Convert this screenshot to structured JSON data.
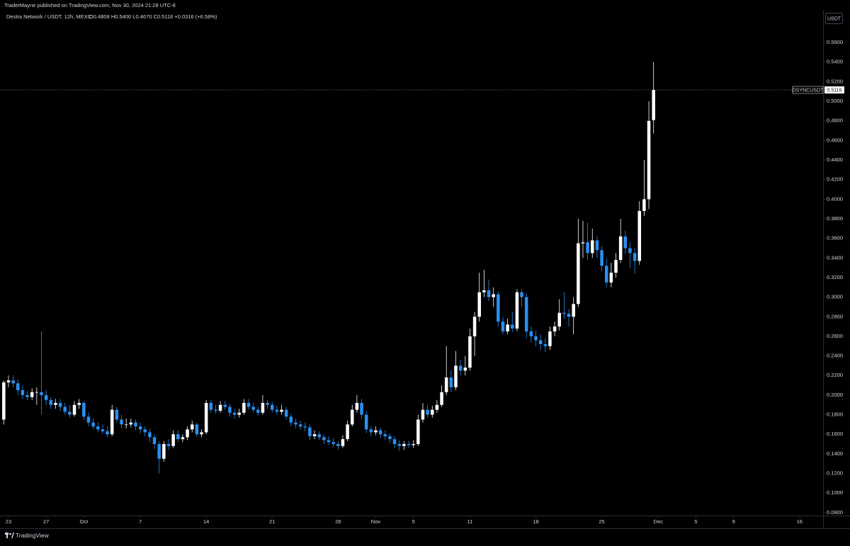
{
  "header": {
    "published": "TraderMayne published on TradingView.com, Nov 30, 2024 21:28 UTC-8",
    "symbol_line": "Destra Network / USDT, 12h, MEXC",
    "ohlc_line": "O0.4808 H0.5400 L0.4670 C0.5116 +0.0316 (+6.58%)",
    "currency_button": "USDT",
    "footer_brand": "TradingView"
  },
  "chart_data": {
    "type": "candlestick",
    "symbol_label": "DSYNCUSDT",
    "up_color": "#ffffff",
    "down_color": "#2a8ff0",
    "x": [
      -0.5,
      0,
      0.5,
      1,
      1.5,
      2,
      2.5,
      3,
      3.5,
      4,
      4.5,
      5,
      5.5,
      6,
      6.5,
      7,
      7.5,
      8,
      8.5,
      9,
      9.5,
      10,
      10.5,
      11,
      11.5,
      12,
      12.5,
      13,
      13.5,
      14,
      14.5,
      15,
      15.5,
      16,
      16.5,
      17,
      17.5,
      18,
      18.5,
      19,
      19.5,
      20,
      20.5,
      21,
      21.5,
      22,
      22.5,
      23,
      23.5,
      24,
      24.5,
      25,
      25.5,
      26,
      26.5,
      27,
      27.5,
      28,
      28.5,
      29,
      29.5,
      30,
      30.5,
      31,
      31.5,
      32,
      32.5,
      33,
      33.5,
      34,
      34.5,
      35,
      35.5,
      36,
      36.5,
      37,
      37.5,
      38,
      38.5,
      39,
      39.5,
      40,
      40.5,
      41,
      41.5,
      42,
      42.5,
      43,
      43.5,
      44,
      44.5,
      45,
      45.5,
      46,
      46.5,
      47,
      47.5,
      48,
      48.5,
      49,
      49.5,
      50,
      50.5,
      51,
      51.5,
      52,
      52.5,
      53,
      53.5,
      54,
      54.5,
      55,
      55.5,
      56,
      56.5,
      57,
      57.5,
      58,
      58.5,
      59,
      59.5,
      60,
      60.5,
      61,
      61.5,
      62,
      62.5,
      63,
      63.5,
      64,
      64.5,
      65,
      65.5,
      66,
      66.5,
      67,
      67.5,
      68,
      68.5
    ],
    "open": [
      0.175,
      0.213,
      0.215,
      0.212,
      0.205,
      0.2,
      0.198,
      0.203,
      0.203,
      0.2,
      0.195,
      0.19,
      0.192,
      0.188,
      0.183,
      0.18,
      0.19,
      0.192,
      0.178,
      0.172,
      0.168,
      0.165,
      0.163,
      0.16,
      0.185,
      0.175,
      0.17,
      0.17,
      0.172,
      0.168,
      0.165,
      0.162,
      0.157,
      0.15,
      0.135,
      0.15,
      0.148,
      0.16,
      0.155,
      0.157,
      0.165,
      0.17,
      0.16,
      0.162,
      0.192,
      0.185,
      0.184,
      0.19,
      0.188,
      0.182,
      0.18,
      0.182,
      0.192,
      0.188,
      0.185,
      0.182,
      0.192,
      0.19,
      0.185,
      0.183,
      0.185,
      0.178,
      0.172,
      0.17,
      0.168,
      0.167,
      0.158,
      0.16,
      0.157,
      0.154,
      0.152,
      0.15,
      0.148,
      0.155,
      0.17,
      0.185,
      0.192,
      0.18,
      0.165,
      0.162,
      0.164,
      0.16,
      0.158,
      0.155,
      0.15,
      0.148,
      0.15,
      0.149,
      0.15,
      0.175,
      0.185,
      0.18,
      0.185,
      0.19,
      0.203,
      0.218,
      0.208,
      0.23,
      0.225,
      0.228,
      0.26,
      0.28,
      0.305,
      0.307,
      0.3,
      0.303,
      0.275,
      0.265,
      0.272,
      0.268,
      0.305,
      0.3,
      0.265,
      0.26,
      0.256,
      0.252,
      0.25,
      0.265,
      0.27,
      0.284,
      0.283,
      0.28,
      0.293,
      0.355,
      0.356,
      0.345,
      0.358,
      0.348,
      0.332,
      0.315,
      0.325,
      0.338,
      0.362,
      0.35,
      0.345,
      0.337,
      0.388,
      0.4,
      0.4808
    ],
    "high": [
      0.215,
      0.22,
      0.22,
      0.216,
      0.21,
      0.204,
      0.207,
      0.208,
      0.265,
      0.205,
      0.198,
      0.196,
      0.196,
      0.192,
      0.19,
      0.194,
      0.196,
      0.194,
      0.182,
      0.176,
      0.172,
      0.17,
      0.168,
      0.19,
      0.188,
      0.18,
      0.176,
      0.176,
      0.175,
      0.172,
      0.168,
      0.166,
      0.16,
      0.153,
      0.153,
      0.155,
      0.164,
      0.164,
      0.16,
      0.168,
      0.174,
      0.172,
      0.165,
      0.195,
      0.195,
      0.19,
      0.194,
      0.194,
      0.191,
      0.186,
      0.186,
      0.196,
      0.196,
      0.192,
      0.188,
      0.2,
      0.195,
      0.193,
      0.189,
      0.19,
      0.188,
      0.181,
      0.176,
      0.174,
      0.172,
      0.17,
      0.164,
      0.163,
      0.16,
      0.158,
      0.156,
      0.153,
      0.159,
      0.174,
      0.19,
      0.2,
      0.196,
      0.184,
      0.168,
      0.168,
      0.167,
      0.164,
      0.161,
      0.158,
      0.154,
      0.153,
      0.153,
      0.154,
      0.18,
      0.192,
      0.19,
      0.189,
      0.195,
      0.21,
      0.25,
      0.225,
      0.245,
      0.236,
      0.24,
      0.268,
      0.285,
      0.325,
      0.328,
      0.318,
      0.31,
      0.306,
      0.28,
      0.278,
      0.285,
      0.308,
      0.308,
      0.304,
      0.27,
      0.266,
      0.262,
      0.258,
      0.27,
      0.275,
      0.298,
      0.305,
      0.288,
      0.3,
      0.38,
      0.378,
      0.376,
      0.37,
      0.362,
      0.352,
      0.34,
      0.335,
      0.345,
      0.38,
      0.368,
      0.356,
      0.35,
      0.398,
      0.44,
      0.5,
      0.54
    ],
    "low": [
      0.17,
      0.208,
      0.208,
      0.2,
      0.196,
      0.195,
      0.195,
      0.19,
      0.18,
      0.19,
      0.186,
      0.186,
      0.184,
      0.18,
      0.177,
      0.178,
      0.186,
      0.175,
      0.168,
      0.165,
      0.162,
      0.16,
      0.157,
      0.158,
      0.172,
      0.166,
      0.166,
      0.167,
      0.164,
      0.161,
      0.158,
      0.152,
      0.145,
      0.12,
      0.132,
      0.144,
      0.146,
      0.152,
      0.152,
      0.154,
      0.162,
      0.157,
      0.157,
      0.16,
      0.182,
      0.181,
      0.182,
      0.185,
      0.178,
      0.176,
      0.177,
      0.18,
      0.185,
      0.182,
      0.179,
      0.18,
      0.186,
      0.182,
      0.18,
      0.18,
      0.175,
      0.168,
      0.166,
      0.165,
      0.163,
      0.154,
      0.155,
      0.154,
      0.15,
      0.149,
      0.147,
      0.144,
      0.146,
      0.153,
      0.168,
      0.182,
      0.176,
      0.161,
      0.158,
      0.159,
      0.156,
      0.154,
      0.151,
      0.146,
      0.143,
      0.144,
      0.146,
      0.146,
      0.148,
      0.172,
      0.177,
      0.177,
      0.182,
      0.188,
      0.2,
      0.203,
      0.205,
      0.22,
      0.22,
      0.225,
      0.24,
      0.275,
      0.3,
      0.296,
      0.29,
      0.27,
      0.262,
      0.262,
      0.264,
      0.265,
      0.29,
      0.258,
      0.254,
      0.25,
      0.246,
      0.244,
      0.246,
      0.26,
      0.266,
      0.278,
      0.27,
      0.262,
      0.29,
      0.34,
      0.338,
      0.34,
      0.34,
      0.326,
      0.31,
      0.31,
      0.32,
      0.335,
      0.344,
      0.33,
      0.324,
      0.333,
      0.383,
      0.39,
      0.467
    ],
    "close": [
      0.213,
      0.215,
      0.212,
      0.205,
      0.2,
      0.198,
      0.203,
      0.203,
      0.2,
      0.195,
      0.19,
      0.192,
      0.188,
      0.183,
      0.18,
      0.19,
      0.192,
      0.178,
      0.172,
      0.168,
      0.165,
      0.163,
      0.16,
      0.185,
      0.175,
      0.17,
      0.17,
      0.172,
      0.168,
      0.165,
      0.162,
      0.157,
      0.15,
      0.135,
      0.15,
      0.148,
      0.16,
      0.155,
      0.157,
      0.165,
      0.17,
      0.16,
      0.162,
      0.192,
      0.185,
      0.184,
      0.19,
      0.188,
      0.182,
      0.18,
      0.182,
      0.192,
      0.188,
      0.185,
      0.182,
      0.192,
      0.19,
      0.185,
      0.183,
      0.185,
      0.178,
      0.172,
      0.17,
      0.168,
      0.167,
      0.158,
      0.16,
      0.157,
      0.154,
      0.152,
      0.15,
      0.148,
      0.155,
      0.17,
      0.185,
      0.192,
      0.18,
      0.165,
      0.162,
      0.164,
      0.16,
      0.158,
      0.155,
      0.15,
      0.148,
      0.15,
      0.149,
      0.15,
      0.175,
      0.185,
      0.18,
      0.185,
      0.19,
      0.203,
      0.218,
      0.208,
      0.23,
      0.225,
      0.228,
      0.26,
      0.28,
      0.305,
      0.307,
      0.3,
      0.303,
      0.275,
      0.265,
      0.272,
      0.268,
      0.305,
      0.3,
      0.265,
      0.26,
      0.256,
      0.252,
      0.25,
      0.265,
      0.27,
      0.284,
      0.283,
      0.28,
      0.293,
      0.355,
      0.356,
      0.345,
      0.358,
      0.348,
      0.332,
      0.315,
      0.325,
      0.338,
      0.362,
      0.35,
      0.345,
      0.337,
      0.388,
      0.4,
      0.48,
      0.5116
    ],
    "xlim": [
      -0.9,
      86.5
    ],
    "xticks": [
      {
        "value": 0,
        "label": "23"
      },
      {
        "value": 4,
        "label": "27"
      },
      {
        "value": 8,
        "label": "Oct"
      },
      {
        "value": 14,
        "label": "7"
      },
      {
        "value": 21,
        "label": "14"
      },
      {
        "value": 28,
        "label": "21"
      },
      {
        "value": 35,
        "label": "28"
      },
      {
        "value": 39,
        "label": "Nov"
      },
      {
        "value": 43,
        "label": "5"
      },
      {
        "value": 49,
        "label": "11"
      },
      {
        "value": 56,
        "label": "18"
      },
      {
        "value": 63,
        "label": "25"
      },
      {
        "value": 69,
        "label": "Dec"
      },
      {
        "value": 73,
        "label": "5"
      },
      {
        "value": 77,
        "label": "9"
      },
      {
        "value": 84,
        "label": "16"
      }
    ],
    "ylim": [
      0.077,
      0.5933
    ],
    "yticks": [
      {
        "value": 0.08,
        "label": "0.0800"
      },
      {
        "value": 0.1,
        "label": "0.1000"
      },
      {
        "value": 0.12,
        "label": "0.1200"
      },
      {
        "value": 0.14,
        "label": "0.1400"
      },
      {
        "value": 0.16,
        "label": "0.1600"
      },
      {
        "value": 0.18,
        "label": "0.1800"
      },
      {
        "value": 0.2,
        "label": "0.2000"
      },
      {
        "value": 0.22,
        "label": "0.2200"
      },
      {
        "value": 0.24,
        "label": "0.2400"
      },
      {
        "value": 0.26,
        "label": "0.2600"
      },
      {
        "value": 0.28,
        "label": "0.2800"
      },
      {
        "value": 0.3,
        "label": "0.3000"
      },
      {
        "value": 0.32,
        "label": "0.3200"
      },
      {
        "value": 0.34,
        "label": "0.3400"
      },
      {
        "value": 0.36,
        "label": "0.3600"
      },
      {
        "value": 0.38,
        "label": "0.3800"
      },
      {
        "value": 0.4,
        "label": "0.4000"
      },
      {
        "value": 0.42,
        "label": "0.4200"
      },
      {
        "value": 0.44,
        "label": "0.4400"
      },
      {
        "value": 0.46,
        "label": "0.4600"
      },
      {
        "value": 0.48,
        "label": "0.4800"
      },
      {
        "value": 0.5,
        "label": "0.5000"
      },
      {
        "value": 0.52,
        "label": "0.5200"
      },
      {
        "value": 0.54,
        "label": "0.5400"
      },
      {
        "value": 0.56,
        "label": "0.5600"
      }
    ],
    "grid": false
  }
}
